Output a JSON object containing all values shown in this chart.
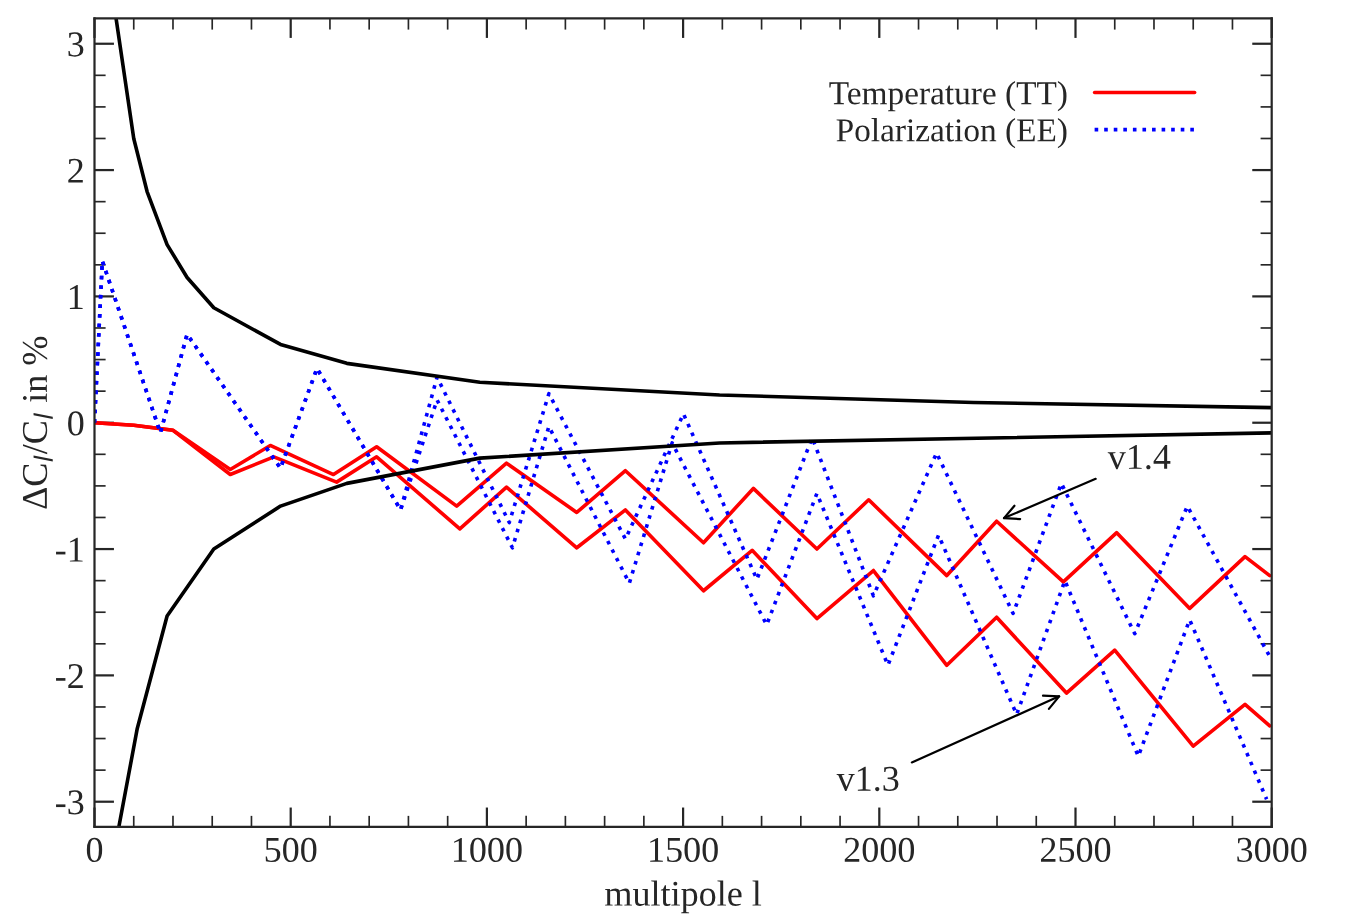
{
  "chart_data": {
    "type": "line",
    "xlabel": "multipole l",
    "ylabel": "ΔC$_{l}$/C$_{l}$ in %",
    "xlim": [
      0,
      3000
    ],
    "ylim": [
      -3.2,
      3.2
    ],
    "xticks": [
      0,
      500,
      1000,
      1500,
      2000,
      2500,
      3000
    ],
    "yticks": [
      -3,
      -2,
      -1,
      0,
      1,
      2,
      3
    ],
    "grid": false,
    "legend": "top right",
    "series": [
      {
        "name": "Temperature (TT)",
        "color": "#ff0000",
        "line_style": "solid",
        "x": [
          0,
          100,
          200,
          346,
          448,
          609,
          719,
          923,
          1050,
          1229,
          1353,
          1552,
          1679,
          1841,
          1973,
          2172,
          2299,
          2469,
          2605,
          2791,
          2932,
          2995
        ],
        "values": [
          0,
          -0.02,
          -0.06,
          -0.37,
          -0.18,
          -0.41,
          -0.19,
          -0.66,
          -0.32,
          -0.71,
          -0.38,
          -0.95,
          -0.52,
          -1.0,
          -0.61,
          -1.21,
          -0.78,
          -1.26,
          -0.87,
          -1.47,
          -1.06,
          -1.21
        ]
      },
      {
        "color": "#ff0000",
        "line_style": "solid",
        "x": [
          0,
          100,
          200,
          346,
          457,
          617,
          719,
          931,
          1050,
          1229,
          1353,
          1552,
          1676,
          1841,
          1985,
          2172,
          2299,
          2477,
          2600,
          2800,
          2932,
          2995
        ],
        "values": [
          0,
          -0.02,
          -0.06,
          -0.41,
          -0.27,
          -0.47,
          -0.27,
          -0.84,
          -0.51,
          -0.99,
          -0.69,
          -1.33,
          -1.01,
          -1.55,
          -1.17,
          -1.92,
          -1.54,
          -2.14,
          -1.8,
          -2.56,
          -2.23,
          -2.4
        ]
      },
      {
        "name": "Polarization (EE)",
        "color": "#0000ff",
        "line_style": "dotted",
        "x": [
          0,
          20,
          168,
          236,
          474,
          567,
          780,
          873,
          1057,
          1158,
          1353,
          1501,
          1688,
          1829,
          1985,
          2146,
          2341,
          2464,
          2651,
          2785,
          2995
        ],
        "values": [
          0,
          1.28,
          -0.08,
          0.7,
          -0.36,
          0.43,
          -0.69,
          0.36,
          -0.79,
          0.23,
          -0.92,
          0.07,
          -1.24,
          -0.12,
          -1.37,
          -0.24,
          -1.51,
          -0.48,
          -1.67,
          -0.66,
          -1.85
        ]
      },
      {
        "color": "#0000ff",
        "line_style": "dotted",
        "x": [
          0,
          20,
          168,
          236,
          474,
          567,
          780,
          873,
          1065,
          1158,
          1363,
          1472,
          1713,
          1841,
          2022,
          2151,
          2350,
          2473,
          2660,
          2791,
          2987
        ],
        "values": [
          0,
          1.28,
          -0.08,
          0.7,
          -0.36,
          0.43,
          -0.69,
          0.18,
          -0.99,
          -0.03,
          -1.27,
          -0.16,
          -1.6,
          -0.56,
          -1.92,
          -0.89,
          -2.31,
          -1.25,
          -2.64,
          -1.56,
          -2.98
        ]
      },
      {
        "color": "#000000",
        "line_style": "solid",
        "x": [
          55,
          100,
          134,
          185,
          236,
          304,
          474,
          643,
          982,
          1593,
          2240,
          3000
        ],
        "values": [
          3.2,
          2.25,
          1.83,
          1.41,
          1.15,
          0.91,
          0.62,
          0.47,
          0.32,
          0.22,
          0.16,
          0.12
        ]
      },
      {
        "color": "#000000",
        "line_style": "solid",
        "x": [
          62,
          109,
          185,
          304,
          474,
          643,
          982,
          1593,
          3000
        ],
        "values": [
          -3.2,
          -2.42,
          -1.53,
          -1.0,
          -0.66,
          -0.48,
          -0.28,
          -0.16,
          -0.08
        ]
      }
    ],
    "annotations": [
      {
        "text": "v1.4",
        "x": 2299,
        "y": -0.78
      },
      {
        "text": "v1.3",
        "x": 2477,
        "y": -2.14
      }
    ]
  }
}
